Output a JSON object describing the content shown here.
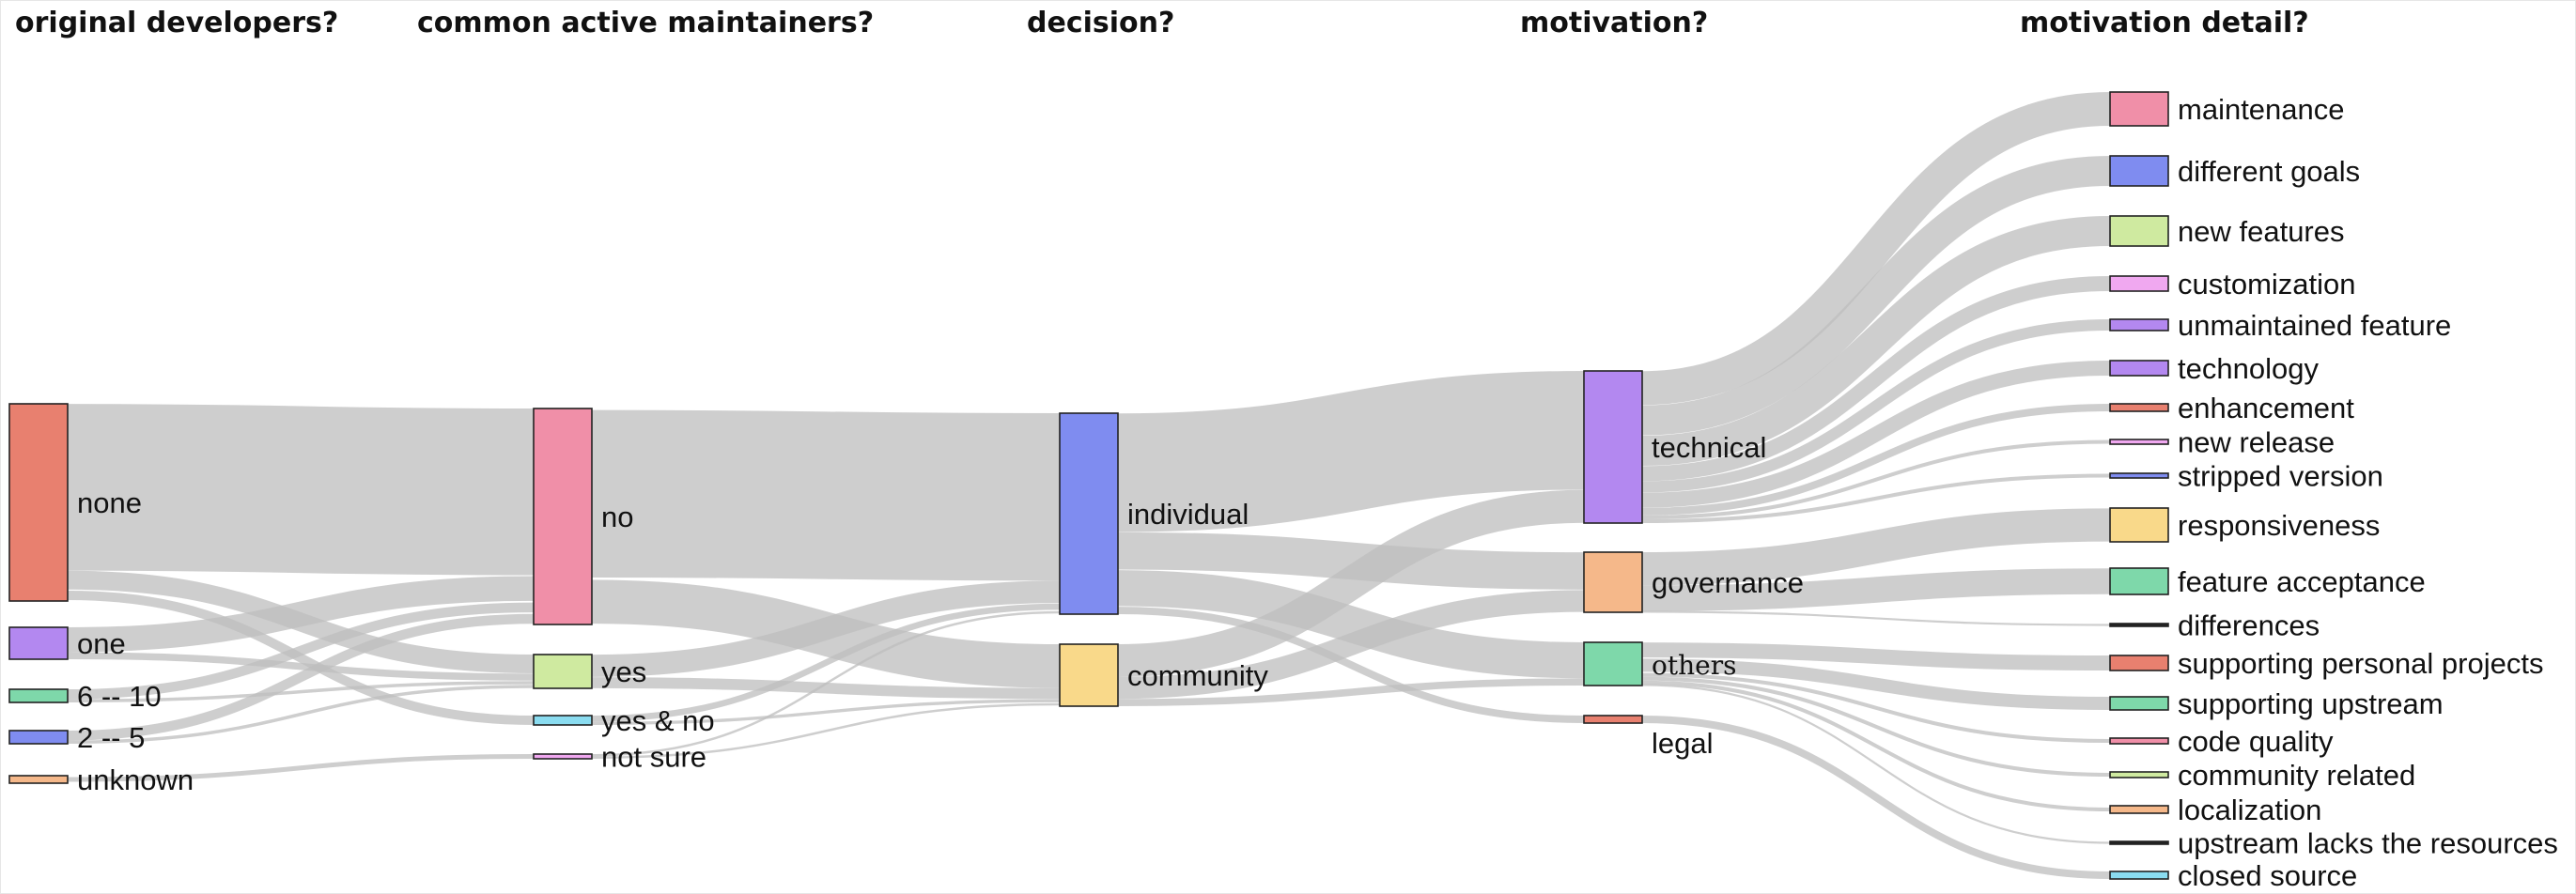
{
  "colors": {
    "link": "#bdbdbd",
    "none": "#e8806f",
    "one": "#b388f0",
    "six_ten": "#7ed8aa",
    "two_five": "#7f8cf0",
    "unknown": "#f5b88a",
    "no": "#f08fa8",
    "yes": "#cfeaa0",
    "yes_no": "#8adcf0",
    "not_sure": "#f0a8f0",
    "individual": "#7f8cf0",
    "community": "#f9d98a",
    "technical": "#b388f0",
    "governance": "#f5b88a",
    "others": "#7ed8aa",
    "legal": "#e8806f"
  },
  "chart_data": {
    "type": "sankey",
    "columns": [
      "original developers?",
      "common active maintainers?",
      "decision?",
      "motivation?",
      "motivation detail?"
    ],
    "nodes": [
      {
        "id": "none",
        "label": "none",
        "column": 0,
        "value": 52,
        "color": "#e8806f"
      },
      {
        "id": "one",
        "label": "one",
        "column": 0,
        "value": 9,
        "color": "#b388f0"
      },
      {
        "id": "six_ten",
        "label": "6 -- 10",
        "column": 0,
        "value": 4,
        "color": "#7ed8aa"
      },
      {
        "id": "two_five",
        "label": "2 -- 5",
        "column": 0,
        "value": 4,
        "color": "#7f8cf0"
      },
      {
        "id": "unknown",
        "label": "unknown",
        "column": 0,
        "value": 2,
        "color": "#f5b88a"
      },
      {
        "id": "no",
        "label": "no",
        "column": 1,
        "value": 57,
        "color": "#f08fa8"
      },
      {
        "id": "yes",
        "label": "yes",
        "column": 1,
        "value": 9,
        "color": "#cfeaa0"
      },
      {
        "id": "yes_no",
        "label": "yes & no",
        "column": 1,
        "value": 3,
        "color": "#8adcf0"
      },
      {
        "id": "not_sure",
        "label": "not sure",
        "column": 1,
        "value": 2,
        "color": "#f0a8f0"
      },
      {
        "id": "individual",
        "label": "individual",
        "column": 2,
        "value": 54,
        "color": "#7f8cf0"
      },
      {
        "id": "community",
        "label": "community",
        "column": 2,
        "value": 17,
        "color": "#f9d98a"
      },
      {
        "id": "technical",
        "label": "technical",
        "column": 3,
        "value": 41,
        "color": "#b388f0"
      },
      {
        "id": "governance",
        "label": "governance",
        "column": 3,
        "value": 16,
        "color": "#f5b88a"
      },
      {
        "id": "others",
        "label": "others",
        "column": 3,
        "value": 12,
        "color": "#7ed8aa"
      },
      {
        "id": "legal",
        "label": "legal",
        "column": 3,
        "value": 2,
        "color": "#e8806f"
      },
      {
        "id": "maintenance",
        "label": "maintenance",
        "column": 4,
        "value": 9,
        "color": "#f08fa8"
      },
      {
        "id": "different_goals",
        "label": "different goals",
        "column": 4,
        "value": 8,
        "color": "#7f8cf0"
      },
      {
        "id": "new_features",
        "label": "new features",
        "column": 4,
        "value": 8,
        "color": "#cfeaa0"
      },
      {
        "id": "customization",
        "label": "customization",
        "column": 4,
        "value": 4,
        "color": "#f0a8f0"
      },
      {
        "id": "unmaintained_feature",
        "label": "unmaintained feature",
        "column": 4,
        "value": 3,
        "color": "#b388f0"
      },
      {
        "id": "technology",
        "label": "technology",
        "column": 4,
        "value": 4,
        "color": "#b388f0"
      },
      {
        "id": "enhancement",
        "label": "enhancement",
        "column": 4,
        "value": 2,
        "color": "#e8806f"
      },
      {
        "id": "new_release",
        "label": "new release",
        "column": 4,
        "value": 1,
        "color": "#f0a8f0"
      },
      {
        "id": "stripped_version",
        "label": "stripped version",
        "column": 4,
        "value": 1,
        "color": "#7f8cf0"
      },
      {
        "id": "responsiveness",
        "label": "responsiveness",
        "column": 4,
        "value": 9,
        "color": "#f9d98a"
      },
      {
        "id": "feature_acceptance",
        "label": "feature acceptance",
        "column": 4,
        "value": 7,
        "color": "#7ed8aa"
      },
      {
        "id": "differences",
        "label": "differences",
        "column": 4,
        "value": 0.3,
        "color": "#222222"
      },
      {
        "id": "supporting_personal",
        "label": "supporting personal projects",
        "column": 4,
        "value": 4,
        "color": "#e8806f"
      },
      {
        "id": "supporting_upstream",
        "label": "supporting upstream",
        "column": 4,
        "value": 4,
        "color": "#7ed8aa"
      },
      {
        "id": "code_quality",
        "label": "code quality",
        "column": 4,
        "value": 1,
        "color": "#f08fa8"
      },
      {
        "id": "community_related",
        "label": "community related",
        "column": 4,
        "value": 1,
        "color": "#cfeaa0"
      },
      {
        "id": "localization",
        "label": "localization",
        "column": 4,
        "value": 1,
        "color": "#f5b88a"
      },
      {
        "id": "upstream_lacks",
        "label": "upstream lacks the resources",
        "column": 4,
        "value": 0.3,
        "color": "#222222"
      },
      {
        "id": "closed_source",
        "label": "closed source",
        "column": 4,
        "value": 1,
        "color": "#8adcf0"
      }
    ],
    "links": [
      {
        "source": "none",
        "target": "no",
        "value": 44
      },
      {
        "source": "none",
        "target": "yes",
        "value": 5
      },
      {
        "source": "none",
        "target": "yes_no",
        "value": 3
      },
      {
        "source": "one",
        "target": "no",
        "value": 7
      },
      {
        "source": "one",
        "target": "yes",
        "value": 2
      },
      {
        "source": "six_ten",
        "target": "no",
        "value": 3
      },
      {
        "source": "six_ten",
        "target": "yes",
        "value": 1
      },
      {
        "source": "two_five",
        "target": "no",
        "value": 3
      },
      {
        "source": "two_five",
        "target": "yes",
        "value": 1
      },
      {
        "source": "unknown",
        "target": "not_sure",
        "value": 2
      },
      {
        "source": "no",
        "target": "individual",
        "value": 45
      },
      {
        "source": "no",
        "target": "community",
        "value": 12
      },
      {
        "source": "yes",
        "target": "individual",
        "value": 6
      },
      {
        "source": "yes",
        "target": "community",
        "value": 3
      },
      {
        "source": "yes_no",
        "target": "individual",
        "value": 2
      },
      {
        "source": "yes_no",
        "target": "community",
        "value": 1
      },
      {
        "source": "not_sure",
        "target": "individual",
        "value": 1
      },
      {
        "source": "not_sure",
        "target": "community",
        "value": 1
      },
      {
        "source": "individual",
        "target": "technical",
        "value": 32
      },
      {
        "source": "individual",
        "target": "governance",
        "value": 10
      },
      {
        "source": "individual",
        "target": "others",
        "value": 10
      },
      {
        "source": "individual",
        "target": "legal",
        "value": 2
      },
      {
        "source": "community",
        "target": "technical",
        "value": 9
      },
      {
        "source": "community",
        "target": "governance",
        "value": 6
      },
      {
        "source": "community",
        "target": "others",
        "value": 2
      },
      {
        "source": "technical",
        "target": "maintenance",
        "value": 9
      },
      {
        "source": "technical",
        "target": "different_goals",
        "value": 8
      },
      {
        "source": "technical",
        "target": "new_features",
        "value": 8
      },
      {
        "source": "technical",
        "target": "customization",
        "value": 4
      },
      {
        "source": "technical",
        "target": "unmaintained_feature",
        "value": 3
      },
      {
        "source": "technical",
        "target": "technology",
        "value": 4
      },
      {
        "source": "technical",
        "target": "enhancement",
        "value": 2
      },
      {
        "source": "technical",
        "target": "new_release",
        "value": 1
      },
      {
        "source": "technical",
        "target": "stripped_version",
        "value": 1
      },
      {
        "source": "governance",
        "target": "responsiveness",
        "value": 9
      },
      {
        "source": "governance",
        "target": "feature_acceptance",
        "value": 7
      },
      {
        "source": "governance",
        "target": "differences",
        "value": 0.3
      },
      {
        "source": "others",
        "target": "supporting_personal",
        "value": 4
      },
      {
        "source": "others",
        "target": "supporting_upstream",
        "value": 4
      },
      {
        "source": "others",
        "target": "code_quality",
        "value": 1
      },
      {
        "source": "others",
        "target": "community_related",
        "value": 1
      },
      {
        "source": "others",
        "target": "localization",
        "value": 1
      },
      {
        "source": "others",
        "target": "upstream_lacks",
        "value": 0.3
      },
      {
        "source": "legal",
        "target": "closed_source",
        "value": 1
      }
    ]
  }
}
